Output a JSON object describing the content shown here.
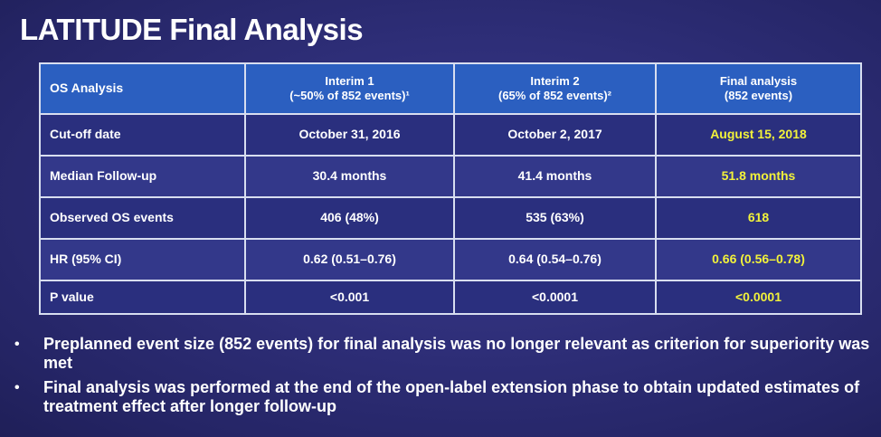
{
  "title": "LATITUDE Final Analysis",
  "table": {
    "headers": [
      {
        "line1": "OS Analysis",
        "line2": ""
      },
      {
        "line1": "Interim 1",
        "line2": "(~50% of 852 events)¹"
      },
      {
        "line1": "Interim 2",
        "line2": "(65% of 852 events)²"
      },
      {
        "line1": "Final analysis",
        "line2": "(852 events)"
      }
    ],
    "rows": [
      {
        "label": "Cut-off date",
        "interim1": "October 31, 2016",
        "interim2": "October 2, 2017",
        "final": "August 15, 2018"
      },
      {
        "label": "Median Follow-up",
        "interim1": "30.4 months",
        "interim2": "41.4 months",
        "final": "51.8 months"
      },
      {
        "label": "Observed OS events",
        "interim1": "406 (48%)",
        "interim2": "535 (63%)",
        "final": "618"
      },
      {
        "label": "HR (95% CI)",
        "interim1": "0.62  (0.51–0.76)",
        "interim2": "0.64 (0.54–0.76)",
        "final": "0.66 (0.56–0.78)"
      },
      {
        "label": "P value",
        "interim1": "<0.001",
        "interim2": "<0.0001",
        "final": "<0.0001"
      }
    ]
  },
  "bullets": [
    "Preplanned event size (852 events) for final analysis was no longer relevant as criterion for superiority was met",
    "Final analysis was performed at the end of the open-label extension phase to obtain updated estimates of treatment effect after longer follow-up"
  ],
  "bullet_symbol": "•",
  "colors": {
    "background": "#2e2e78",
    "header_fill": "#2b5fc0",
    "highlight_text": "#f2f23a",
    "border": "#d8def0"
  }
}
